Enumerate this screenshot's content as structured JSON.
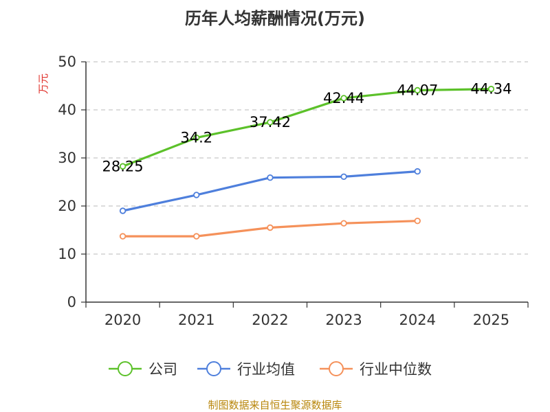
{
  "chart_data": {
    "type": "line",
    "title": "历年人均薪酬情况(万元)",
    "xlabel": "",
    "ylabel": "万元",
    "categories": [
      "2020",
      "2021",
      "2022",
      "2023",
      "2024",
      "2025"
    ],
    "ylim": [
      0,
      50
    ],
    "yticks": [
      0,
      10,
      20,
      30,
      40,
      50
    ],
    "grid": true,
    "legend_position": "bottom",
    "series": [
      {
        "name": "公司",
        "color": "#5cc12a",
        "values": [
          28.25,
          34.2,
          37.42,
          42.44,
          44.07,
          44.34
        ],
        "data_labels": [
          "28.25",
          "34.2",
          "37.42",
          "42.44",
          "44.07",
          "44.34"
        ],
        "show_labels": true
      },
      {
        "name": "行业均值",
        "color": "#4e7fdc",
        "values": [
          19.0,
          22.3,
          25.9,
          26.1,
          27.2,
          null
        ],
        "show_labels": false
      },
      {
        "name": "行业中位数",
        "color": "#f5915a",
        "values": [
          13.7,
          13.7,
          15.5,
          16.4,
          16.9,
          null
        ],
        "show_labels": false
      }
    ]
  },
  "footer": {
    "source": "制图数据来自恒生聚源数据库"
  }
}
